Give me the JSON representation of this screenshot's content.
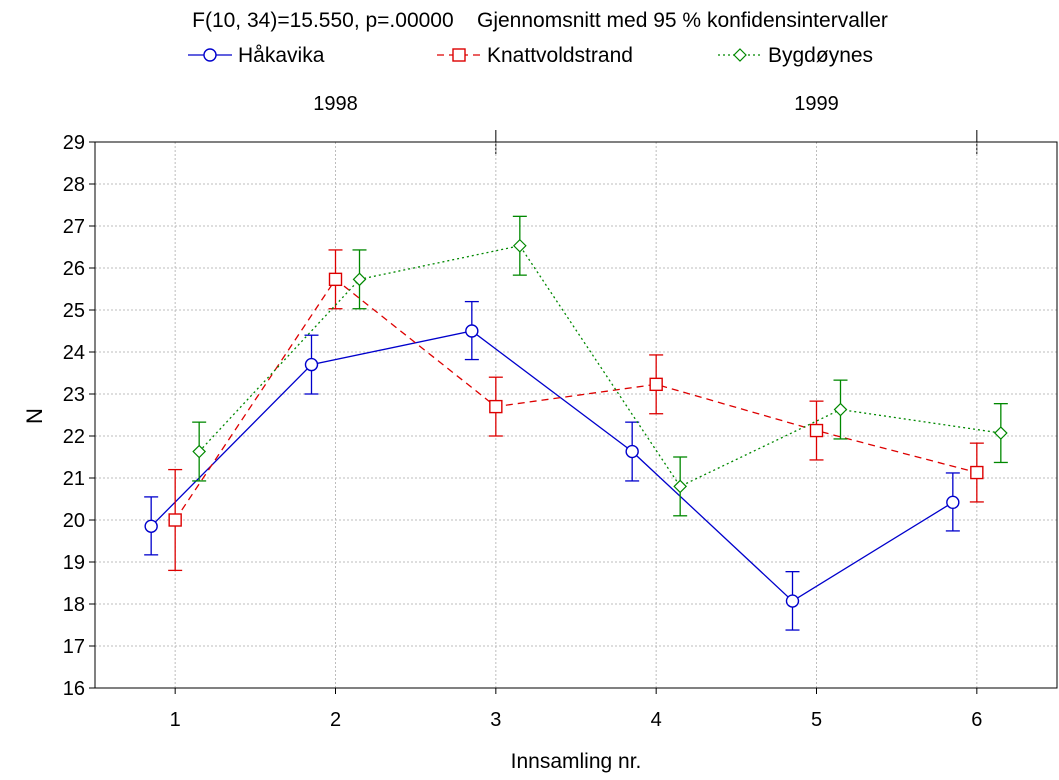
{
  "chart_data": {
    "type": "line",
    "title": "F(10, 34)=15.550, p=.00000    Gjennomsnitt med 95 % konfidensintervaller",
    "xlabel": "Innsamling nr.",
    "ylabel": "N",
    "categories": [
      "1",
      "2",
      "3",
      "4",
      "5",
      "6"
    ],
    "ylim": [
      16,
      29
    ],
    "yticks": [
      16,
      17,
      18,
      19,
      20,
      21,
      22,
      23,
      24,
      25,
      26,
      27,
      28,
      29
    ],
    "year_groups": [
      {
        "label": "1998",
        "from": 1,
        "to": 3
      },
      {
        "label": "1999",
        "from": 4,
        "to": 6
      }
    ],
    "grid": true,
    "legend_position": "top",
    "series": [
      {
        "name": "Håkavika",
        "color": "#0000cc",
        "marker": "circle",
        "dash": "solid",
        "values": [
          19.85,
          23.7,
          24.5,
          21.63,
          18.07,
          20.42
        ],
        "ci_low": [
          19.17,
          23.0,
          23.82,
          20.93,
          17.38,
          19.74
        ],
        "ci_high": [
          20.55,
          24.4,
          25.2,
          22.33,
          18.77,
          21.12
        ]
      },
      {
        "name": "Knattvoldstrand",
        "color": "#dd0000",
        "marker": "square",
        "dash": "dashed",
        "values": [
          20.0,
          25.73,
          22.7,
          23.23,
          22.13,
          21.13
        ],
        "ci_low": [
          18.8,
          25.03,
          22.0,
          22.53,
          21.43,
          20.43
        ],
        "ci_high": [
          21.2,
          26.43,
          23.4,
          23.93,
          22.83,
          21.83
        ]
      },
      {
        "name": "Bygdøynes",
        "color": "#008800",
        "marker": "diamond",
        "dash": "dotted",
        "values": [
          21.63,
          25.73,
          26.53,
          20.8,
          22.63,
          22.07
        ],
        "ci_low": [
          20.93,
          25.03,
          25.83,
          20.1,
          21.93,
          21.37
        ],
        "ci_high": [
          22.33,
          26.43,
          27.23,
          21.5,
          23.33,
          22.77
        ]
      }
    ]
  }
}
